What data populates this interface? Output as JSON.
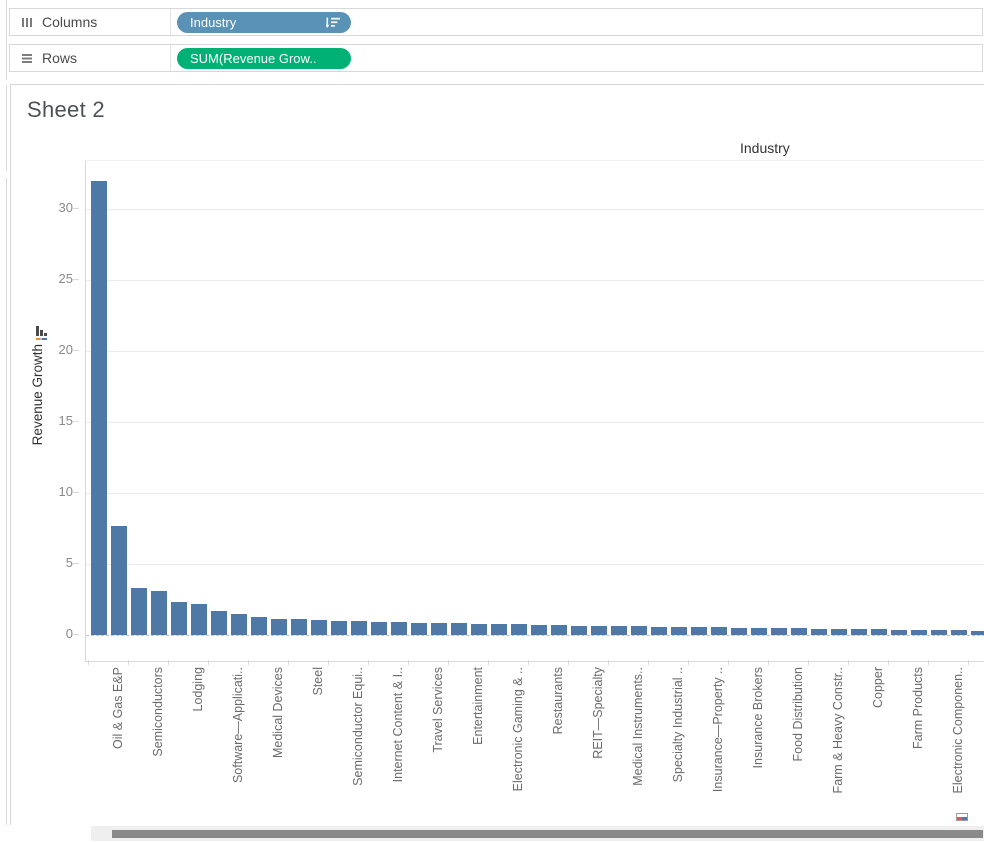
{
  "shelves": {
    "columns": {
      "label": "Columns",
      "pill": "Industry",
      "pill_color": "#5a92b5",
      "pill_icon": "sort-descending-icon",
      "shelf_icon": "columns-bars-icon"
    },
    "rows": {
      "label": "Rows",
      "pill": "SUM(Revenue Grow..",
      "pill_color": "#00b176",
      "shelf_icon": "rows-lines-icon"
    }
  },
  "sheet": {
    "title": "Sheet 2",
    "column_header": "Industry"
  },
  "colors": {
    "bar": "#4e79a7",
    "axis_text": "#8a8a8a",
    "category_text": "#6b6b6b",
    "gridline": "#ececec"
  },
  "chart_data": {
    "type": "bar",
    "title": "Sheet 2",
    "x_field": "Industry",
    "y_field": "Revenue Growth",
    "y_axis_title": "Revenue Growth",
    "sort": "descending",
    "grid": "horizontal",
    "legend": "none",
    "yticks": [
      0,
      5,
      10,
      15,
      20,
      25,
      30
    ],
    "ylim": [
      -1.8,
      33.4
    ],
    "label_placement": "labels shown under every other bar (2nd, 4th, ...); remaining bars unlabeled",
    "labeled_categories": [
      "Oil & Gas E&P",
      "Semiconductors",
      "Lodging",
      "Software—Applicati..",
      "Medical Devices",
      "Steel",
      "Semiconductor Equi..",
      "Internet Content & I..",
      "Travel Services",
      "Entertainment",
      "Electronic Gaming & ..",
      "Restaurants",
      "REIT—Specialty",
      "Medical Instruments..",
      "Specialty Industrial ..",
      "Insurance—Property ..",
      "Insurance Brokers",
      "Food Distribution",
      "Farm & Heavy Constr..",
      "Copper",
      "Farm Products",
      "Electronic Componen.."
    ],
    "values": [
      32.0,
      7.7,
      3.3,
      3.1,
      2.3,
      2.2,
      1.7,
      1.45,
      1.25,
      1.15,
      1.1,
      1.05,
      1.0,
      0.97,
      0.94,
      0.91,
      0.88,
      0.85,
      0.82,
      0.8,
      0.77,
      0.74,
      0.71,
      0.68,
      0.66,
      0.64,
      0.62,
      0.6,
      0.58,
      0.56,
      0.55,
      0.53,
      0.51,
      0.5,
      0.48,
      0.46,
      0.45,
      0.43,
      0.42,
      0.4,
      0.38,
      0.36,
      0.34,
      0.32,
      0.3
    ]
  }
}
